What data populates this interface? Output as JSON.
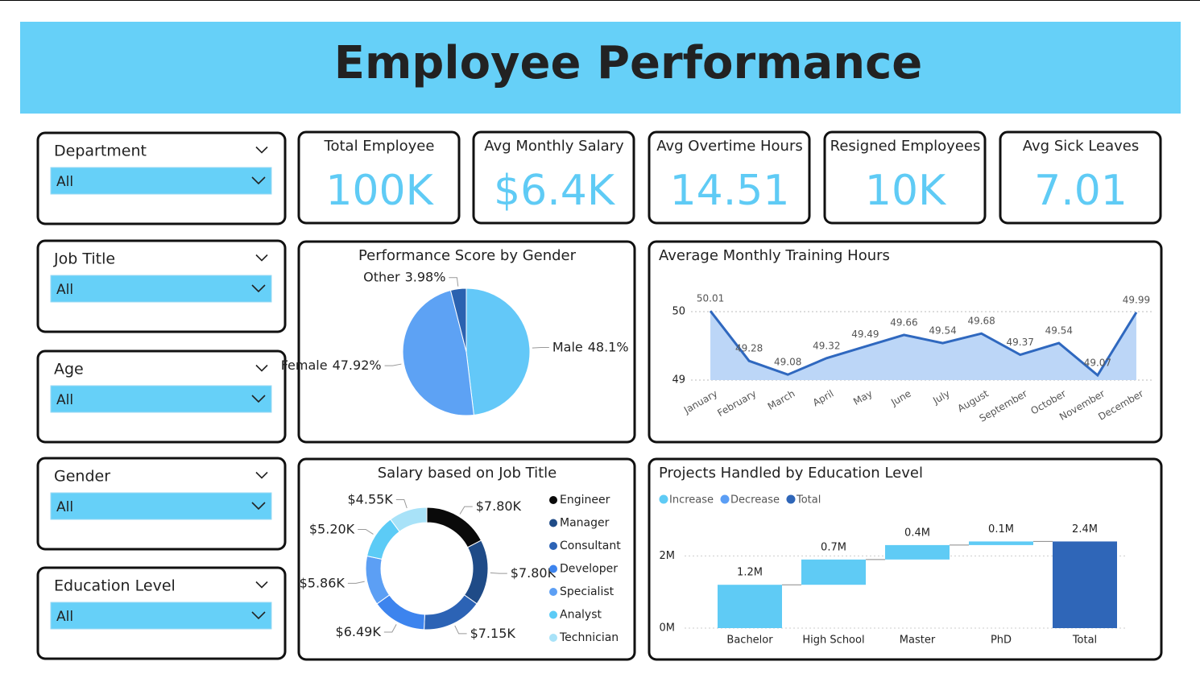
{
  "title": "Employee Performance",
  "slicers": [
    {
      "label": "Department",
      "value": "All"
    },
    {
      "label": "Job Title",
      "value": "All"
    },
    {
      "label": "Age",
      "value": "All"
    },
    {
      "label": "Gender",
      "value": "All"
    },
    {
      "label": "Education Level",
      "value": "All"
    }
  ],
  "kpis": [
    {
      "label": "Total Employee",
      "value": "100K"
    },
    {
      "label": "Avg Monthly Salary",
      "value": "$6.4K"
    },
    {
      "label": "Avg Overtime Hours",
      "value": "14.51"
    },
    {
      "label": "Resigned Employees",
      "value": "10K"
    },
    {
      "label": "Avg Sick Leaves",
      "value": "7.01"
    }
  ],
  "chart_data": [
    {
      "type": "pie",
      "title": "Performance Score by Gender",
      "categories": [
        "Male",
        "Female",
        "Other"
      ],
      "values": [
        48.1,
        47.92,
        3.98
      ],
      "value_labels": [
        "48.1%",
        "47.92%",
        "3.98%"
      ],
      "colors": [
        "#63c8f8",
        "#5da2f4",
        "#2a62b0"
      ]
    },
    {
      "type": "line",
      "title": "Average Monthly Training Hours",
      "categories": [
        "January",
        "February",
        "March",
        "April",
        "May",
        "June",
        "July",
        "August",
        "September",
        "October",
        "November",
        "December"
      ],
      "values": [
        50.01,
        49.28,
        49.08,
        49.32,
        49.49,
        49.66,
        49.54,
        49.68,
        49.37,
        49.54,
        49.07,
        49.99
      ],
      "ylim": [
        49,
        50.2
      ],
      "yticks": [
        49,
        50
      ],
      "grid": true,
      "color": "#2f68bf",
      "area_color": "#bcd6f7"
    },
    {
      "type": "donut",
      "title": "Salary based on Job Title",
      "categories": [
        "Engineer",
        "Manager",
        "Consultant",
        "Developer",
        "Specialist",
        "Analyst",
        "Technician"
      ],
      "values": [
        7.8,
        7.8,
        7.15,
        6.49,
        5.86,
        5.2,
        4.55
      ],
      "value_labels": [
        "$7.80K",
        "$7.80K",
        "$7.15K",
        "$6.49K",
        "$5.86K",
        "$5.20K",
        "$4.55K"
      ],
      "colors": [
        "#0a0a0a",
        "#1f4b87",
        "#2c63b5",
        "#3d84ee",
        "#5c9ff4",
        "#5ccbf6",
        "#a8e2f8"
      ],
      "legend": "right"
    },
    {
      "type": "waterfall",
      "title": "Projects Handled by Education Level",
      "categories": [
        "Bachelor",
        "High School",
        "Master",
        "PhD",
        "Total"
      ],
      "values": [
        1.2,
        0.7,
        0.4,
        0.1,
        2.4
      ],
      "value_labels": [
        "1.2M",
        "0.7M",
        "0.4M",
        "0.1M",
        "2.4M"
      ],
      "legend": [
        {
          "name": "Increase",
          "color": "#5fcbf5"
        },
        {
          "name": "Decrease",
          "color": "#5b9ef5"
        },
        {
          "name": "Total",
          "color": "#2f66b8"
        }
      ],
      "ylim": [
        0,
        2.9
      ],
      "yticks": [
        {
          "value": 0,
          "label": "0M"
        },
        {
          "value": 2,
          "label": "2M"
        }
      ],
      "grid": true
    }
  ]
}
